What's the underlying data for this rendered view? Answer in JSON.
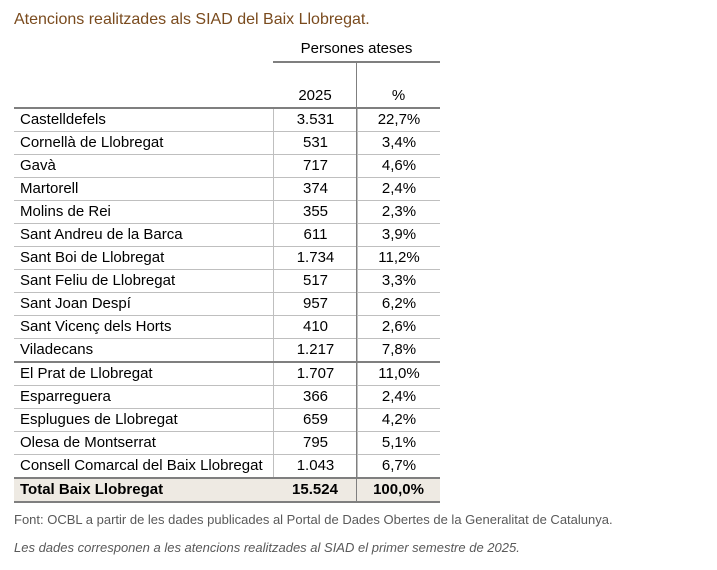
{
  "title": "Atencions realitzades als SIAD del Baix Llobregat.",
  "table": {
    "group_header": "Persones ateses",
    "col_year": "2025",
    "col_pct": "%",
    "rows": [
      {
        "name": "Castelldefels",
        "value": "3.531",
        "pct": "22,7%"
      },
      {
        "name": "Cornellà de Llobregat",
        "value": "531",
        "pct": "3,4%"
      },
      {
        "name": "Gavà",
        "value": "717",
        "pct": "4,6%"
      },
      {
        "name": "Martorell",
        "value": "374",
        "pct": "2,4%"
      },
      {
        "name": "Molins de Rei",
        "value": "355",
        "pct": "2,3%"
      },
      {
        "name": "Sant Andreu de la Barca",
        "value": "611",
        "pct": "3,9%"
      },
      {
        "name": "Sant Boi de Llobregat",
        "value": "1.734",
        "pct": "11,2%"
      },
      {
        "name": "Sant Feliu de Llobregat",
        "value": "517",
        "pct": "3,3%"
      },
      {
        "name": "Sant Joan Despí",
        "value": "957",
        "pct": "6,2%"
      },
      {
        "name": "Sant Vicenç dels Horts",
        "value": "410",
        "pct": "2,6%"
      },
      {
        "name": "Viladecans",
        "value": "1.217",
        "pct": "7,8%"
      },
      {
        "name": "El Prat de Llobregat",
        "value": "1.707",
        "pct": "11,0%"
      },
      {
        "name": "Esparreguera",
        "value": "366",
        "pct": "2,4%"
      },
      {
        "name": "Esplugues de Llobregat",
        "value": "659",
        "pct": "4,2%"
      },
      {
        "name": "Olesa de Montserrat",
        "value": "795",
        "pct": "5,1%"
      },
      {
        "name": "Consell Comarcal del Baix Llobregat",
        "value": "1.043",
        "pct": "6,7%"
      }
    ],
    "total": {
      "name": "Total Baix Llobregat",
      "value": "15.524",
      "pct": "100,0%"
    }
  },
  "source": "Font: OCBL a partir de les dades publicades al Portal de Dades Obertes de la Generalitat de Catalunya.",
  "note": "Les dades corresponen a les atencions realitzades al SIAD el primer semestre de 2025."
}
